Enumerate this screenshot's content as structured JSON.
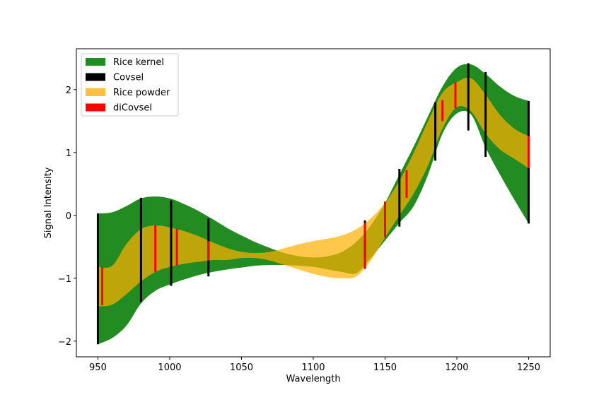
{
  "chart_data": {
    "type": "area",
    "xlabel": "Wavelength",
    "ylabel": "Signal Intensity",
    "xlim": [
      935,
      1265
    ],
    "ylim": [
      -2.25,
      2.65
    ],
    "xticks": [
      950,
      1000,
      1050,
      1100,
      1150,
      1200,
      1250
    ],
    "yticks": [
      -2,
      -1,
      0,
      1,
      2
    ],
    "grid": false,
    "legend_position": "top-left",
    "bands": [
      {
        "name": "Rice kernel",
        "color": "#228B22",
        "x": [
          950,
          960,
          970,
          980,
          990,
          1000,
          1010,
          1020,
          1030,
          1040,
          1050,
          1060,
          1070,
          1080,
          1090,
          1100,
          1110,
          1120,
          1130,
          1140,
          1150,
          1160,
          1170,
          1180,
          1190,
          1200,
          1210,
          1220,
          1230,
          1240,
          1250
        ],
        "upper": [
          0.03,
          0.05,
          0.15,
          0.27,
          0.3,
          0.27,
          0.18,
          0.07,
          -0.06,
          -0.2,
          -0.32,
          -0.43,
          -0.52,
          -0.6,
          -0.65,
          -0.67,
          -0.65,
          -0.58,
          -0.42,
          -0.16,
          0.2,
          0.65,
          1.1,
          1.58,
          2.05,
          2.35,
          2.4,
          2.25,
          2.05,
          1.9,
          1.82
        ],
        "lower": [
          -2.05,
          -1.95,
          -1.75,
          -1.4,
          -1.2,
          -1.1,
          -1.02,
          -0.95,
          -0.9,
          -0.86,
          -0.83,
          -0.8,
          -0.79,
          -0.79,
          -0.8,
          -0.82,
          -0.86,
          -0.9,
          -0.92,
          -0.68,
          -0.4,
          -0.12,
          0.15,
          0.65,
          1.3,
          1.62,
          1.6,
          1.08,
          0.65,
          0.25,
          -0.13
        ]
      },
      {
        "name": "Rice powder",
        "color": "#FFB000",
        "x": [
          950,
          960,
          970,
          980,
          990,
          1000,
          1010,
          1020,
          1030,
          1040,
          1050,
          1060,
          1070,
          1080,
          1090,
          1100,
          1110,
          1120,
          1130,
          1140,
          1150,
          1160,
          1170,
          1180,
          1190,
          1200,
          1210,
          1220,
          1230,
          1240,
          1250
        ],
        "upper": [
          -0.82,
          -0.8,
          -0.45,
          -0.22,
          -0.16,
          -0.19,
          -0.25,
          -0.33,
          -0.43,
          -0.52,
          -0.58,
          -0.6,
          -0.58,
          -0.52,
          -0.46,
          -0.41,
          -0.37,
          -0.32,
          -0.22,
          -0.05,
          0.2,
          0.55,
          1.0,
          1.5,
          1.95,
          2.12,
          2.18,
          1.92,
          1.6,
          1.38,
          1.26
        ],
        "lower": [
          -1.45,
          -1.42,
          -1.25,
          -1.05,
          -0.9,
          -0.82,
          -0.77,
          -0.74,
          -0.71,
          -0.71,
          -0.68,
          -0.68,
          -0.72,
          -0.79,
          -0.86,
          -0.93,
          -0.98,
          -1.0,
          -0.97,
          -0.72,
          -0.35,
          0.0,
          0.35,
          0.8,
          1.38,
          1.72,
          1.65,
          1.3,
          1.05,
          0.9,
          0.75
        ]
      }
    ],
    "markers": [
      {
        "name": "Covsel",
        "color": "#000000",
        "lines": [
          {
            "x": 950,
            "y_min": -2.05,
            "y_max": 0.03
          },
          {
            "x": 980,
            "y_min": -1.38,
            "y_max": 0.28
          },
          {
            "x": 1001,
            "y_min": -1.12,
            "y_max": 0.24
          },
          {
            "x": 1027,
            "y_min": -0.97,
            "y_max": -0.05
          },
          {
            "x": 1136,
            "y_min": -0.85,
            "y_max": -0.08
          },
          {
            "x": 1160,
            "y_min": -0.18,
            "y_max": 0.74
          },
          {
            "x": 1185,
            "y_min": 0.87,
            "y_max": 1.8
          },
          {
            "x": 1208,
            "y_min": 1.35,
            "y_max": 2.42
          },
          {
            "x": 1220,
            "y_min": 0.93,
            "y_max": 2.28
          },
          {
            "x": 1250,
            "y_min": -0.13,
            "y_max": 1.82
          }
        ]
      },
      {
        "name": "diCovsel",
        "color": "#FF0000",
        "lines": [
          {
            "x": 953,
            "y_min": -1.43,
            "y_max": -0.82
          },
          {
            "x": 990,
            "y_min": -0.9,
            "y_max": -0.16
          },
          {
            "x": 1005,
            "y_min": -0.8,
            "y_max": -0.21
          },
          {
            "x": 1027,
            "y_min": -0.72,
            "y_max": -0.41
          },
          {
            "x": 1136,
            "y_min": -0.84,
            "y_max": -0.12
          },
          {
            "x": 1150,
            "y_min": -0.35,
            "y_max": 0.22
          },
          {
            "x": 1165,
            "y_min": 0.28,
            "y_max": 0.72
          },
          {
            "x": 1190,
            "y_min": 1.5,
            "y_max": 1.83
          },
          {
            "x": 1199,
            "y_min": 1.7,
            "y_max": 2.12
          },
          {
            "x": 1250,
            "y_min": 0.75,
            "y_max": 1.26
          }
        ]
      }
    ],
    "legend": [
      {
        "label": "Rice kernel",
        "color": "#228B22"
      },
      {
        "label": "Covsel",
        "color": "#000000"
      },
      {
        "label": "Rice powder",
        "color": "#FFC040"
      },
      {
        "label": "diCovsel",
        "color": "#FF0000"
      }
    ]
  }
}
